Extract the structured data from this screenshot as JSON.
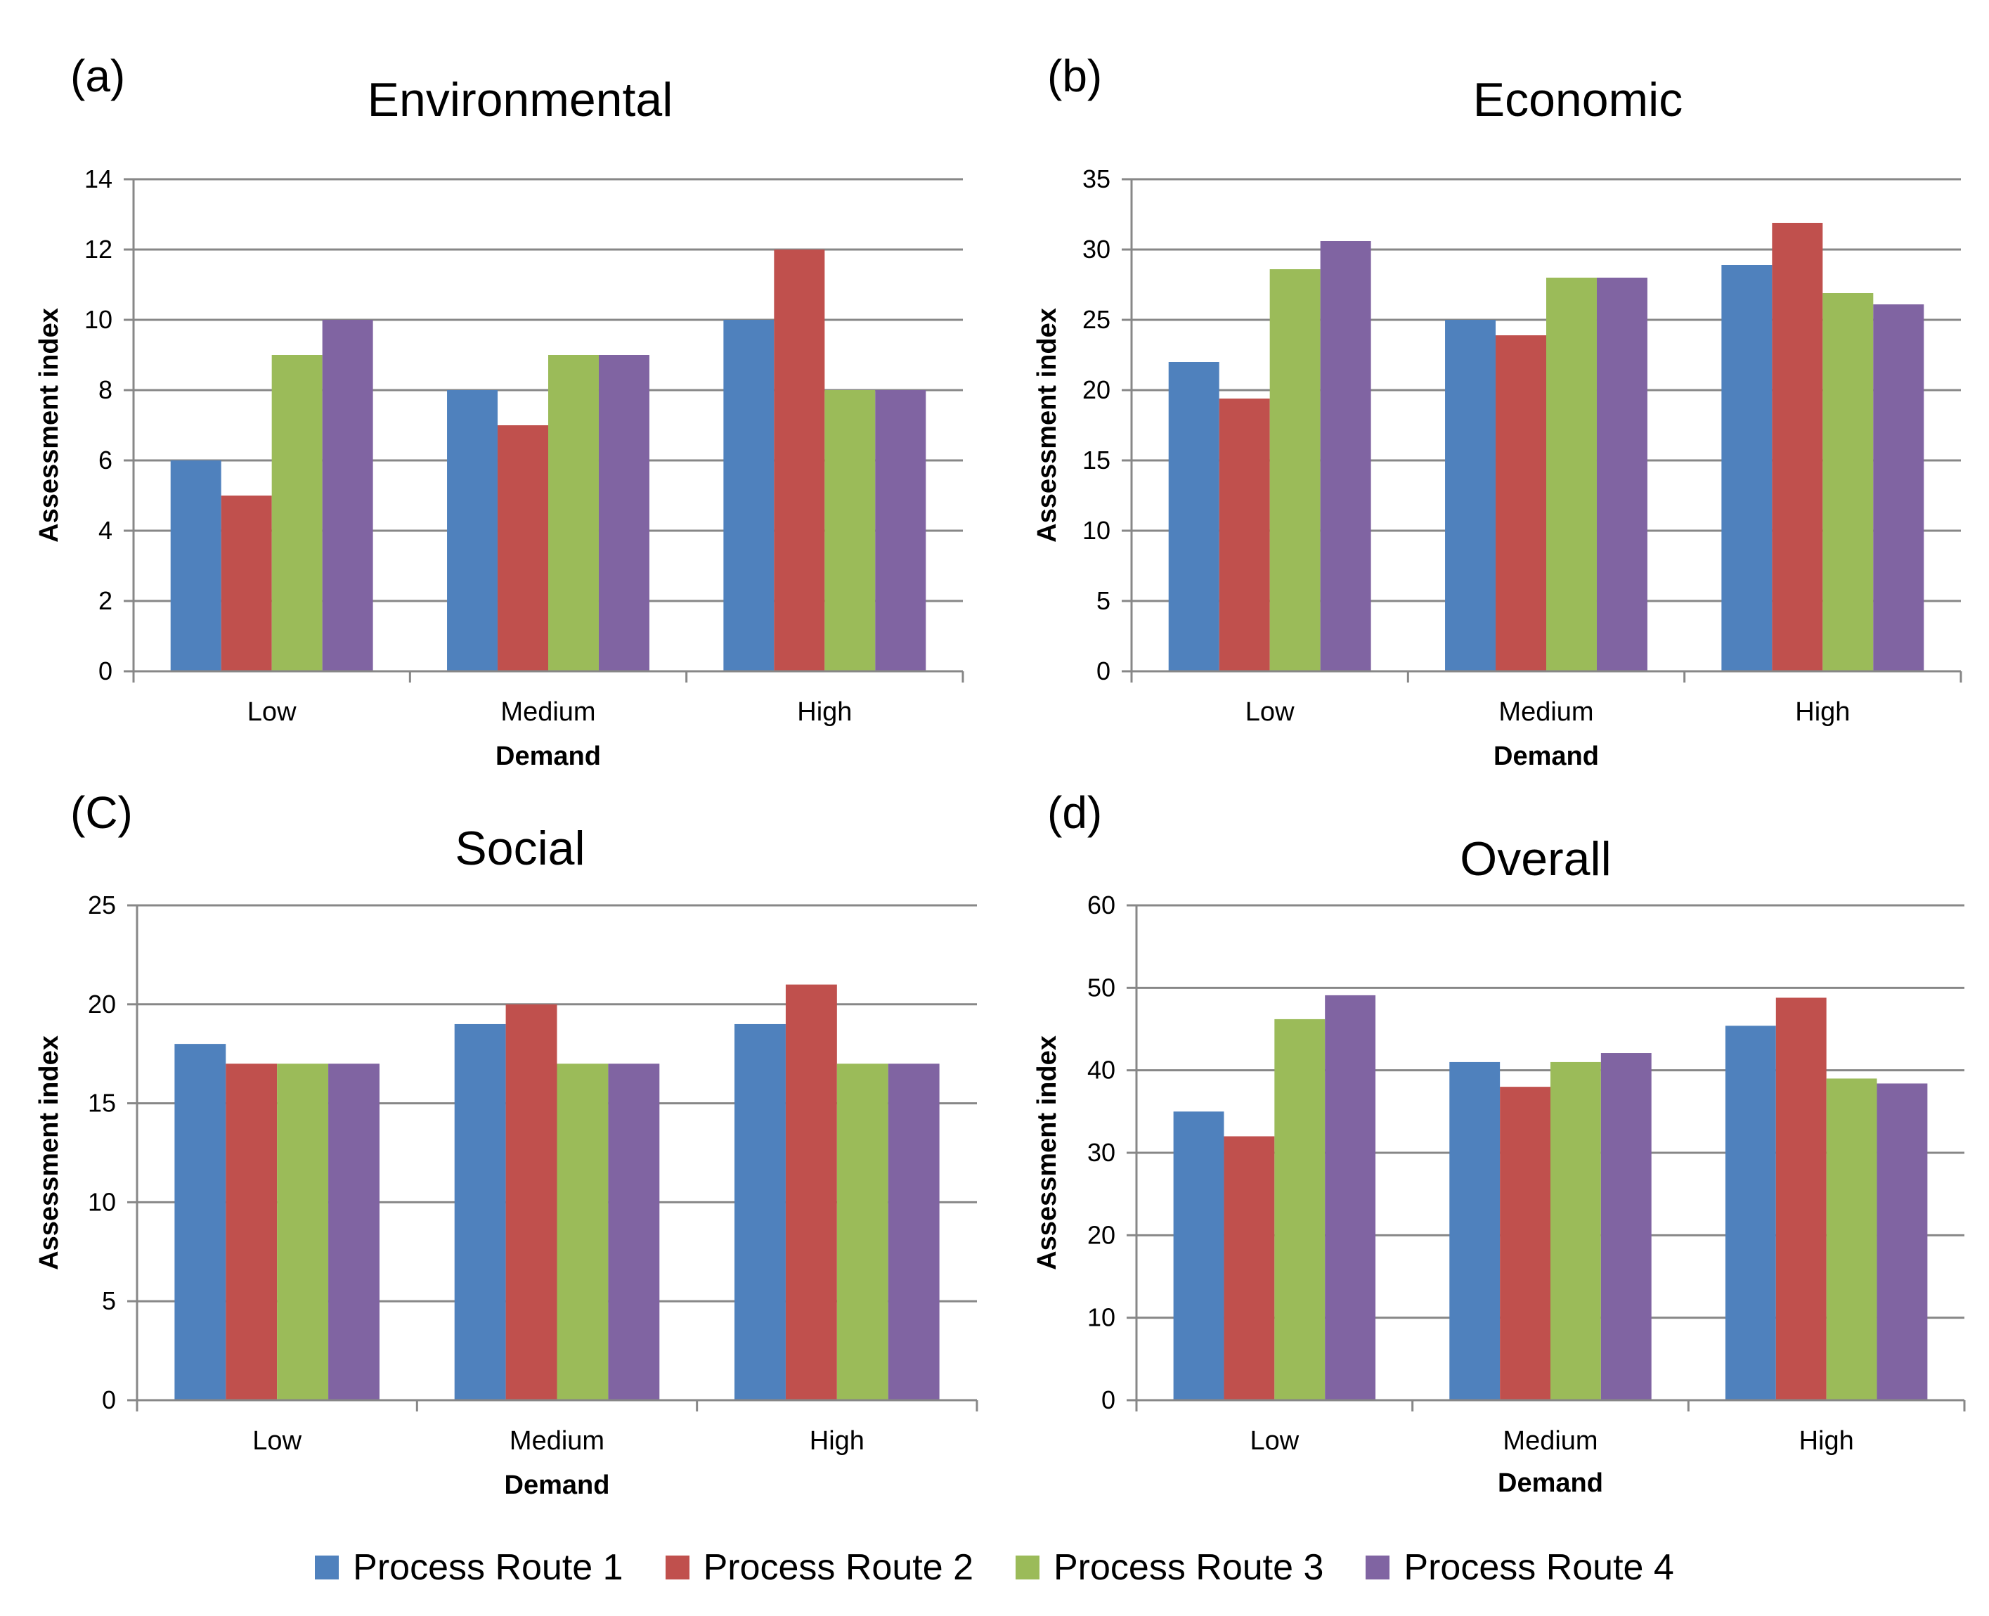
{
  "legend": {
    "series": [
      {
        "name": "Process Route 1",
        "color": "#4F81BD"
      },
      {
        "name": "Process Route 2",
        "color": "#C0504D"
      },
      {
        "name": "Process Route 3",
        "color": "#9BBB59"
      },
      {
        "name": "Process Route 4",
        "color": "#8064A2"
      }
    ]
  },
  "chart_data": [
    {
      "panel_label": "(a)",
      "type": "bar",
      "title": "Environmental",
      "xlabel": "Demand",
      "ylabel": "Assessment index",
      "ylim": [
        0,
        14
      ],
      "yticks": [
        "0",
        "2",
        "4",
        "6",
        "8",
        "10",
        "12",
        "14"
      ],
      "categories": [
        "Low",
        "Medium",
        "High"
      ],
      "grid": true,
      "series": [
        {
          "name": "Process Route 1",
          "values": [
            6,
            8,
            10
          ]
        },
        {
          "name": "Process Route 2",
          "values": [
            5,
            7,
            12
          ]
        },
        {
          "name": "Process Route 3",
          "values": [
            9,
            9,
            8
          ]
        },
        {
          "name": "Process Route 4",
          "values": [
            10,
            9,
            8
          ]
        }
      ]
    },
    {
      "panel_label": "(b)",
      "type": "bar",
      "title": "Economic",
      "xlabel": "Demand",
      "ylabel": "Assessment index",
      "ylim": [
        0,
        35
      ],
      "yticks": [
        "0",
        "5",
        "10",
        "15",
        "20",
        "25",
        "30",
        "35"
      ],
      "categories": [
        "Low",
        "Medium",
        "High"
      ],
      "grid": true,
      "series": [
        {
          "name": "Process Route 1",
          "values": [
            22,
            25,
            28.9
          ]
        },
        {
          "name": "Process Route 2",
          "values": [
            19.4,
            23.9,
            31.9
          ]
        },
        {
          "name": "Process Route 3",
          "values": [
            28.6,
            28,
            26.9
          ]
        },
        {
          "name": "Process Route 4",
          "values": [
            30.6,
            28,
            26.1
          ]
        }
      ]
    },
    {
      "panel_label": "(C)",
      "type": "bar",
      "title": "Social",
      "xlabel": "Demand",
      "ylabel": "Assessment index",
      "ylim": [
        0,
        25
      ],
      "yticks": [
        "0",
        "5",
        "10",
        "15",
        "20",
        "25"
      ],
      "categories": [
        "Low",
        "Medium",
        "High"
      ],
      "grid": true,
      "series": [
        {
          "name": "Process Route 1",
          "values": [
            18,
            19,
            19
          ]
        },
        {
          "name": "Process Route 2",
          "values": [
            17,
            20,
            21
          ]
        },
        {
          "name": "Process Route 3",
          "values": [
            17,
            17,
            17
          ]
        },
        {
          "name": "Process Route 4",
          "values": [
            17,
            17,
            17
          ]
        }
      ]
    },
    {
      "panel_label": "(d)",
      "type": "bar",
      "title": "Overall",
      "xlabel": "Demand",
      "ylabel": "Assessment index",
      "ylim": [
        0,
        60
      ],
      "yticks": [
        "0",
        "10",
        "20",
        "30",
        "40",
        "50",
        "60"
      ],
      "categories": [
        "Low",
        "Medium",
        "High"
      ],
      "grid": true,
      "series": [
        {
          "name": "Process Route 1",
          "values": [
            35,
            41,
            45.4
          ]
        },
        {
          "name": "Process Route 2",
          "values": [
            32,
            38,
            48.8
          ]
        },
        {
          "name": "Process Route 3",
          "values": [
            46.2,
            41,
            39
          ]
        },
        {
          "name": "Process Route 4",
          "values": [
            49.1,
            42.1,
            38.4
          ]
        }
      ]
    }
  ]
}
